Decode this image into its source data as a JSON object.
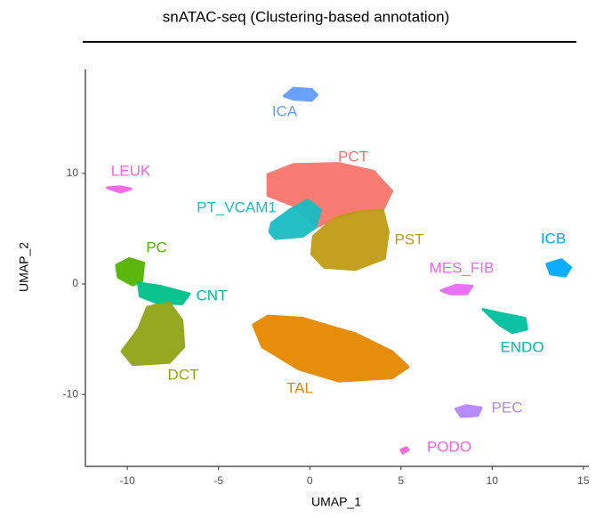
{
  "chart_data": {
    "type": "scatter",
    "title": "snATAC-seq (Clustering-based annotation)",
    "x_label": "UMAP_1",
    "y_label": "UMAP_2",
    "xlim": [
      -12.3,
      15.3
    ],
    "ylim": [
      -16.5,
      19.4
    ],
    "xticks": [
      -10,
      -5,
      0,
      5,
      10,
      15
    ],
    "yticks": [
      -10,
      0,
      10
    ],
    "grid": false,
    "series": [
      {
        "name": "ICA",
        "color": "#619cff",
        "x": [
          -1.4,
          -0.9,
          0.1,
          0.4,
          0.1,
          -0.9
        ],
        "y": [
          17.0,
          17.7,
          17.6,
          17.1,
          16.6,
          16.7
        ]
      },
      {
        "name": "PCT",
        "color": "#f8766d",
        "x": [
          -2.3,
          -0.9,
          1.6,
          3.5,
          4.5,
          4.0,
          2.5,
          1.3,
          0.3,
          -0.1,
          -0.9,
          -2.3
        ],
        "y": [
          9.9,
          10.8,
          10.9,
          10.2,
          8.4,
          6.7,
          6.5,
          5.9,
          5.1,
          5.9,
          7.1,
          8.0
        ]
      },
      {
        "name": "PST",
        "color": "#c09b14",
        "x": [
          2.5,
          4.0,
          4.3,
          4.1,
          2.5,
          0.8,
          0.1,
          0.2,
          1.3
        ],
        "y": [
          6.5,
          6.7,
          4.7,
          2.3,
          1.3,
          1.5,
          2.7,
          4.3,
          5.9
        ]
      },
      {
        "name": "PT_VCAM1",
        "color": "#19bdc2",
        "x": [
          -2.1,
          -1.1,
          -0.1,
          0.6,
          0.3,
          -0.4,
          -1.9,
          -2.2
        ],
        "y": [
          5.5,
          6.7,
          7.6,
          6.7,
          5.1,
          4.3,
          4.1,
          4.7
        ]
      },
      {
        "name": "LEUK",
        "color": "#f564e3",
        "x": [
          -11.1,
          -10.4,
          -9.8,
          -10.4
        ],
        "y": [
          8.7,
          8.8,
          8.6,
          8.3
        ]
      },
      {
        "name": "PC",
        "color": "#53b400",
        "x": [
          -10.6,
          -9.9,
          -9.1,
          -9.2,
          -9.7,
          -10.5
        ],
        "y": [
          1.7,
          2.3,
          1.9,
          0.3,
          -0.1,
          0.6
        ]
      },
      {
        "name": "CNT",
        "color": "#00c08b",
        "x": [
          -9.4,
          -8.2,
          -6.6,
          -7.0,
          -8.4,
          -9.3
        ],
        "y": [
          0.1,
          -0.2,
          -0.9,
          -1.8,
          -1.7,
          -1.1
        ]
      },
      {
        "name": "DCT",
        "color": "#8fa514",
        "x": [
          -8.9,
          -7.7,
          -7.0,
          -6.9,
          -7.7,
          -9.7,
          -10.3,
          -9.4
        ],
        "y": [
          -2.1,
          -1.7,
          -3.3,
          -5.7,
          -7.1,
          -7.3,
          -6.1,
          -4.1
        ]
      },
      {
        "name": "TAL",
        "color": "#e58700",
        "x": [
          -3.1,
          -2.3,
          -0.4,
          2.5,
          4.5,
          5.4,
          4.5,
          1.6,
          -0.6,
          -2.6
        ],
        "y": [
          -3.7,
          -2.9,
          -3.1,
          -4.5,
          -6.1,
          -7.5,
          -8.5,
          -8.8,
          -7.7,
          -5.7
        ]
      },
      {
        "name": "MES_FIB",
        "color": "#e76bf3",
        "x": [
          7.2,
          8.0,
          8.9,
          8.6,
          7.7
        ],
        "y": [
          -0.6,
          -0.1,
          -0.2,
          -0.9,
          -0.9
        ]
      },
      {
        "name": "ICB",
        "color": "#00a9ff",
        "x": [
          13.0,
          13.8,
          14.3,
          14.0,
          13.2
        ],
        "y": [
          1.8,
          2.2,
          1.5,
          0.7,
          0.9
        ]
      },
      {
        "name": "ENDO",
        "color": "#00bf9e",
        "x": [
          9.5,
          10.6,
          11.8,
          11.9,
          11.1,
          10.4
        ],
        "y": [
          -2.3,
          -2.7,
          -3.1,
          -4.1,
          -4.4,
          -3.7
        ]
      },
      {
        "name": "PEC",
        "color": "#b385ff",
        "x": [
          8.0,
          8.6,
          9.4,
          9.2,
          8.3
        ],
        "y": [
          -11.3,
          -11.0,
          -11.2,
          -11.9,
          -12.0
        ]
      },
      {
        "name": "PODO",
        "color": "#fb61d7",
        "x": [
          5.0,
          5.3,
          5.4,
          5.1
        ],
        "y": [
          -15.0,
          -14.8,
          -15.0,
          -15.3
        ]
      }
    ]
  }
}
